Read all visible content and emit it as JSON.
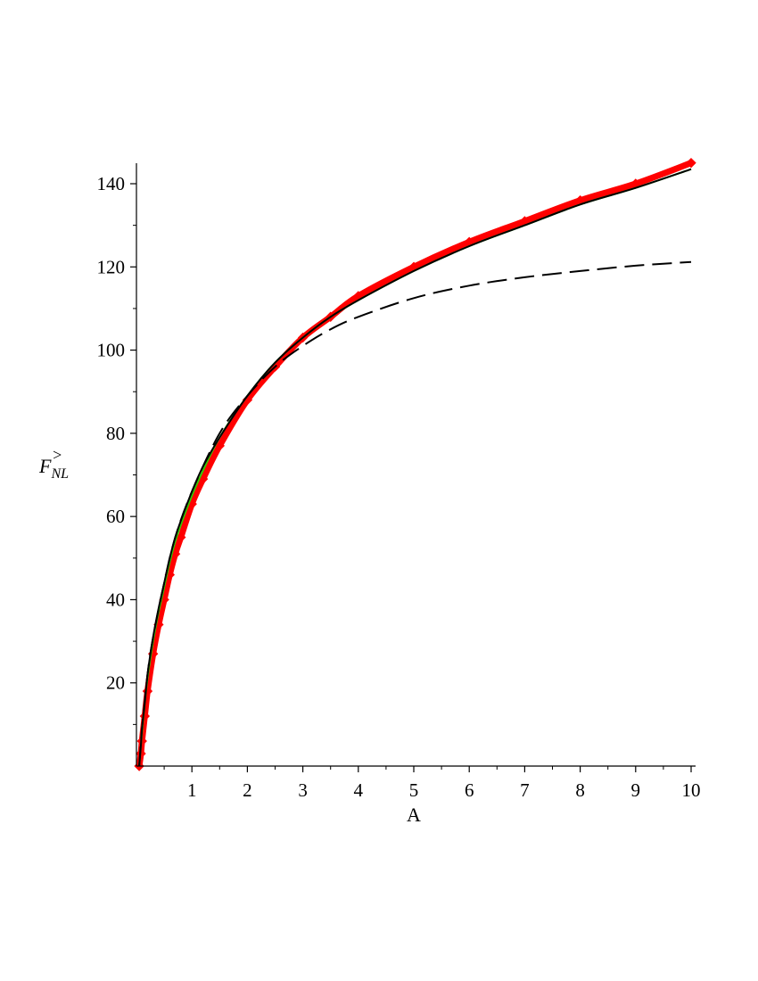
{
  "chart_data": {
    "type": "line",
    "title": "",
    "xlabel": "A",
    "ylabel": {
      "base": "F",
      "sub": "NL",
      "sup": ">"
    },
    "xlim": [
      0,
      10
    ],
    "ylim": [
      0,
      145
    ],
    "x_ticks": [
      1,
      2,
      3,
      4,
      5,
      6,
      7,
      8,
      9,
      10
    ],
    "x_tick_labels": [
      "1",
      "2",
      "3",
      "4",
      "5",
      "6",
      "7",
      "8",
      "9",
      "10"
    ],
    "y_ticks": [
      20,
      40,
      60,
      80,
      100,
      120,
      140
    ],
    "y_tick_labels": [
      "20",
      "40",
      "60",
      "80",
      "100",
      "120",
      "140"
    ],
    "grid": false,
    "legend": "none",
    "series": [
      {
        "style": "thick-solid-with-diamond-markers",
        "color": "#ff0000",
        "x": [
          0.05,
          0.08,
          0.1,
          0.15,
          0.2,
          0.3,
          0.4,
          0.5,
          0.6,
          0.7,
          0.8,
          1.0,
          1.2,
          1.5,
          2.0,
          2.5,
          3.0,
          3.5,
          4.0,
          5.0,
          6.0,
          7.0,
          8.0,
          9.0,
          10.0
        ],
        "y": [
          0,
          3,
          6,
          12,
          18,
          27,
          34,
          40,
          46,
          51,
          55,
          63,
          69,
          77,
          88,
          96,
          103,
          108,
          113,
          120,
          126,
          131,
          136,
          140,
          145
        ]
      },
      {
        "style": "solid",
        "color": "#33cc00",
        "x": [
          0.05,
          0.08,
          0.1,
          0.15,
          0.2,
          0.3,
          0.4,
          0.5,
          0.6,
          0.7,
          0.8,
          1.0,
          1.2,
          1.5,
          2.0,
          2.5,
          3.0,
          3.5,
          4.0,
          5.0,
          6.0,
          7.0,
          8.0,
          9.0,
          10.0
        ],
        "y": [
          0,
          5,
          8,
          15,
          21,
          30,
          37,
          43,
          49,
          54,
          58,
          65,
          71,
          79,
          89,
          97,
          103,
          108,
          112,
          119,
          125,
          130,
          135,
          139,
          143.5
        ]
      },
      {
        "style": "solid",
        "color": "#000000",
        "x": [
          0.05,
          0.08,
          0.1,
          0.15,
          0.2,
          0.3,
          0.4,
          0.5,
          0.6,
          0.7,
          0.8,
          1.0,
          1.2,
          1.5,
          2.0,
          2.5,
          3.0,
          3.5,
          4.0,
          5.0,
          6.0,
          7.0,
          8.0,
          9.0,
          10.0
        ],
        "y": [
          0,
          5,
          9,
          15,
          22,
          31,
          38,
          44,
          50,
          55,
          59,
          66,
          72,
          79,
          89,
          97,
          103,
          108,
          112,
          119,
          125,
          130,
          135,
          139,
          143.5
        ]
      },
      {
        "style": "dashed",
        "color": "#000000",
        "x": [
          0.05,
          0.1,
          0.2,
          0.3,
          0.5,
          0.7,
          1.0,
          1.5,
          2.0,
          2.5,
          3.0,
          3.5,
          4.0,
          5.0,
          6.0,
          7.0,
          8.0,
          9.0,
          10.0
        ],
        "y": [
          0,
          9,
          22,
          31,
          44,
          55,
          66,
          80,
          89,
          96,
          101,
          105,
          108,
          112.5,
          115.5,
          117.5,
          119,
          120.3,
          121.2
        ]
      }
    ]
  }
}
